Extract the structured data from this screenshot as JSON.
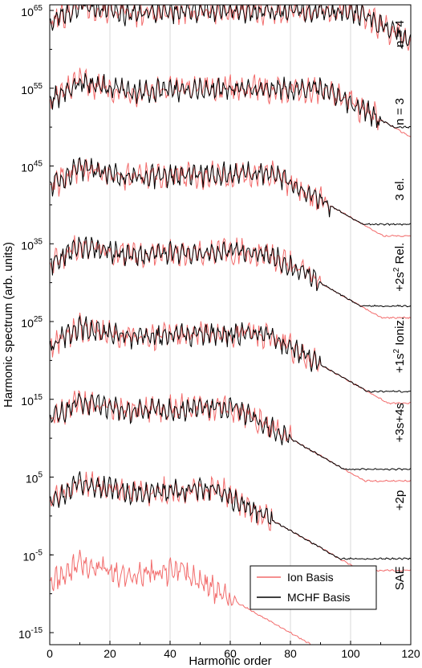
{
  "chart_data": {
    "type": "line",
    "xlabel": "Harmonic order",
    "ylabel": "Harmonic spectrum (arb. units)",
    "xlim": [
      0,
      120
    ],
    "x_ticks": [
      0,
      20,
      40,
      60,
      80,
      100,
      120
    ],
    "y_scale": "log",
    "ylim_exponent": [
      -16,
      66
    ],
    "y_tick_labels": [
      {
        "base": "10",
        "exp": "65",
        "exp_value": 65
      },
      {
        "base": "10",
        "exp": "55",
        "exp_value": 55
      },
      {
        "base": "10",
        "exp": "45",
        "exp_value": 45
      },
      {
        "base": "10",
        "exp": "35",
        "exp_value": 35
      },
      {
        "base": "10",
        "exp": "25",
        "exp_value": 25
      },
      {
        "base": "10",
        "exp": "15",
        "exp_value": 15
      },
      {
        "base": "10",
        "exp": "5",
        "exp_value": 5
      },
      {
        "base": "10",
        "exp": "-5",
        "exp_value": -5
      },
      {
        "base": "10",
        "exp": "-15",
        "exp_value": -15
      }
    ],
    "grid": "vertical",
    "legend": {
      "placement": "lower-right",
      "entries": [
        {
          "name": "Ion Basis",
          "color": "#f26b6b"
        },
        {
          "name": "MCHF Basis",
          "color": "#000000"
        }
      ]
    },
    "panels": [
      {
        "label": "n = 4",
        "label_sup": "",
        "label_rest": "",
        "offset": 60,
        "base": 0,
        "cutoff": 120,
        "tail": 0,
        "has_mchf": true
      },
      {
        "label": "n = 3",
        "label_sup": "",
        "label_rest": "",
        "offset": 50,
        "base": 0,
        "cutoff": 110,
        "tail": -1.5,
        "has_mchf": true
      },
      {
        "label": "3 el.",
        "label_sup": "",
        "label_rest": "",
        "offset": 40,
        "base": -1,
        "cutoff": 93,
        "tail": -3,
        "has_mchf": true
      },
      {
        "label": "+2s",
        "label_sup": "2",
        "label_rest": " Rel.",
        "offset": 30,
        "base": -1,
        "cutoff": 90,
        "tail": -3.5,
        "has_mchf": true
      },
      {
        "label": "+1s",
        "label_sup": "2",
        "label_rest": " Ioniz.",
        "offset": 20,
        "base": -1.5,
        "cutoff": 90,
        "tail": -4,
        "has_mchf": true
      },
      {
        "label": "+3s+4s",
        "label_sup": "",
        "label_rest": "",
        "offset": 10,
        "base": -1,
        "cutoff": 80,
        "tail": -4.5,
        "has_mchf": true
      },
      {
        "label": "+2p",
        "label_sup": "",
        "label_rest": "",
        "offset": 0,
        "base": -1.5,
        "cutoff": 74,
        "tail": -5.5,
        "has_mchf": true
      },
      {
        "label": "SAE",
        "label_sup": "",
        "label_rest": "",
        "offset": -10,
        "base": -2,
        "cutoff": 62,
        "tail": -5,
        "has_mchf": false
      }
    ]
  }
}
